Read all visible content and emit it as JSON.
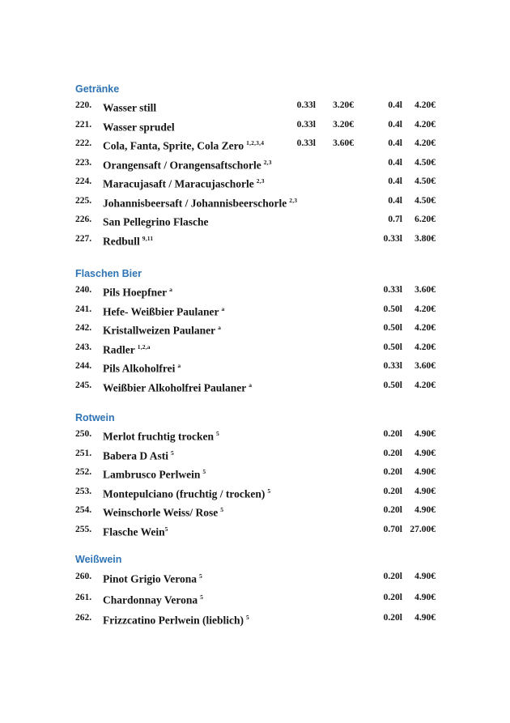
{
  "colors": {
    "heading": "#2E74B5",
    "text": "#161616",
    "background": "#ffffff"
  },
  "sections": [
    {
      "title": "Getränke",
      "items": [
        {
          "num": "220.",
          "name": "Wasser still",
          "sup": "",
          "vol1": "0.33l",
          "price1": "3.20€",
          "vol2": "0.4l",
          "price2": "4.20€"
        },
        {
          "num": "221.",
          "name": "Wasser sprudel",
          "sup": "",
          "vol1": "0.33l",
          "price1": "3.20€",
          "vol2": "0.4l",
          "price2": "4.20€"
        },
        {
          "num": "222.",
          "name": "Cola, Fanta, Sprite, Cola Zero",
          "sup": "1,2,3,4",
          "vol1": "0.33l",
          "price1": "3.60€",
          "vol2": "0.4l",
          "price2": "4.20€"
        },
        {
          "num": "223.",
          "name": "Orangensaft / Orangensaftschorle",
          "sup": "2,3",
          "vol1": "",
          "price1": "",
          "vol2": "0.4l",
          "price2": "4.50€"
        },
        {
          "num": "224.",
          "name": "Maracujasaft / Maracujaschorle",
          "sup": "2,3",
          "vol1": "",
          "price1": "",
          "vol2": "0.4l",
          "price2": "4.50€"
        },
        {
          "num": "225.",
          "name": "Johannisbeersaft / Johannisbeerschorle",
          "sup": "2,3",
          "vol1": "",
          "price1": "",
          "vol2": "0.4l",
          "price2": "4.50€"
        },
        {
          "num": "226.",
          "name": "San Pellegrino Flasche",
          "sup": "",
          "vol1": "",
          "price1": "",
          "vol2": "0.7l",
          "price2": "6.20€"
        },
        {
          "num": "227.",
          "name": "Redbull",
          "sup": "9,11",
          "vol1": "",
          "price1": "",
          "vol2": "0.33l",
          "price2": "3.80€"
        }
      ]
    },
    {
      "title": "Flaschen Bier",
      "items": [
        {
          "num": "240.",
          "name": "Pils Hoepfner",
          "sup": "a",
          "vol1": "",
          "price1": "",
          "vol2": "0.33l",
          "price2": "3.60€"
        },
        {
          "num": "241.",
          "name": "Hefe- Weißbier Paulaner",
          "sup": "a",
          "vol1": "",
          "price1": "",
          "vol2": "0.50l",
          "price2": "4.20€"
        },
        {
          "num": "242.",
          "name": "Kristallweizen Paulaner",
          "sup": "a",
          "vol1": "",
          "price1": "",
          "vol2": "0.50l",
          "price2": "4.20€"
        },
        {
          "num": "243.",
          "name": "Radler",
          "sup": "1,2,a",
          "vol1": "",
          "price1": "",
          "vol2": "0.50l",
          "price2": "4.20€"
        },
        {
          "num": "244.",
          "name": "Pils Alkoholfrei",
          "sup": "a",
          "vol1": "",
          "price1": "",
          "vol2": "0.33l",
          "price2": "3.60€"
        },
        {
          "num": "245.",
          "name": "Weißbier Alkoholfrei Paulaner",
          "sup": "a",
          "vol1": "",
          "price1": "",
          "vol2": "0.50l",
          "price2": "4.20€"
        }
      ]
    },
    {
      "title": "Rotwein",
      "items": [
        {
          "num": "250.",
          "name": "Merlot fruchtig trocken",
          "sup": "5",
          "vol1": "",
          "price1": "",
          "vol2": "0.20l",
          "price2": "4.90€"
        },
        {
          "num": "251.",
          "name": "Babera D Asti",
          "sup": "5",
          "vol1": "",
          "price1": "",
          "vol2": "0.20l",
          "price2": "4.90€"
        },
        {
          "num": "252.",
          "name": "Lambrusco Perlwein",
          "sup": "5",
          "vol1": "",
          "price1": "",
          "vol2": "0.20l",
          "price2": "4.90€"
        },
        {
          "num": "253.",
          "name": "Montepulciano (fruchtig / trocken)",
          "sup": "5",
          "vol1": "",
          "price1": "",
          "vol2": "0.20l",
          "price2": "4.90€"
        },
        {
          "num": "254.",
          "name": "Weinschorle Weiss/ Rose",
          "sup": "5",
          "vol1": "",
          "price1": "",
          "vol2": "0.20l",
          "price2": "4.90€"
        },
        {
          "num": "255.",
          "name": "Flasche Wein",
          "sup": "5",
          "sup_attached": true,
          "vol1": "",
          "price1": "",
          "vol2": "0.70l",
          "price2": "27.00€"
        }
      ]
    },
    {
      "title": "Weißwein",
      "items": [
        {
          "num": "260.",
          "name": "Pinot Grigio Verona",
          "sup": "5",
          "vol1": "",
          "price1": "",
          "vol2": "0.20l",
          "price2": "4.90€"
        },
        {
          "num": "261.",
          "name": "Chardonnay Verona",
          "sup": "5",
          "vol1": "",
          "price1": "",
          "vol2": "0.20l",
          "price2": "4.90€"
        },
        {
          "num": "262.",
          "name": "Frizzcatino Perlwein (lieblich)",
          "sup": "5",
          "vol1": "",
          "price1": "",
          "vol2": "0.20l",
          "price2": "4.90€"
        }
      ]
    }
  ]
}
